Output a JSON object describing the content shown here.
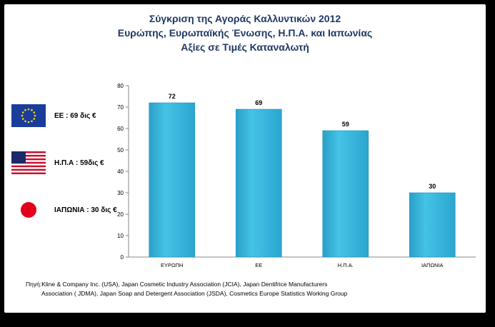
{
  "title_lines": [
    "Σύγκριση της Αγοράς Καλλυντικών 2012",
    "Ευρώπης, Ευρωπαϊκής Ένωσης, Η.Π.Α. και Ιαπωνίας",
    "Αξίες σε Τιμές Καταναλωτή"
  ],
  "legend": [
    {
      "label": "ΕΕ : 69 δις €",
      "icon": "eu-flag-icon"
    },
    {
      "label": "Η.Π.Α : 59δις €",
      "icon": "us-flag-icon"
    },
    {
      "label": "ΙΑΠΩΝΙΑ : 30 δις €",
      "icon": "japan-flag-icon"
    }
  ],
  "source_lines": [
    "Πηγή:Kline & Company Inc. (USA), Japan Cosmetic Industry Association (JCIA), Japan Dentifrice Manufacturers",
    "Association ( JDMA), Japan Soap and Detergent Association (JSDA), Cosmetics Europe Statistics Working Group"
  ],
  "colors": {
    "bar": "#35b6dc",
    "bar_dark": "#1f8fb8",
    "title": "#1f3864"
  },
  "chart_data": {
    "type": "bar",
    "categories": [
      "ΕΥΡΩΠΗ",
      "ΕΕ",
      "Η.Π.Α.",
      "ΙΑΠΩΝΙΑ"
    ],
    "values": [
      72,
      69,
      59,
      30
    ],
    "ylim": [
      0,
      80
    ],
    "yticks": [
      0,
      10,
      20,
      30,
      40,
      50,
      60,
      70,
      80
    ],
    "grid": false,
    "data_labels": true
  }
}
